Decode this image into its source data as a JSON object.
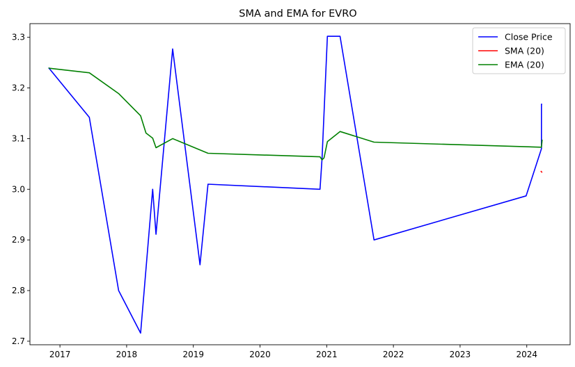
{
  "chart_data": {
    "type": "line",
    "title": "SMA and EMA for EVRO",
    "xlabel": "",
    "ylabel": "",
    "xlim": [
      2016.55,
      2024.65
    ],
    "ylim": [
      2.693,
      3.327
    ],
    "x_ticks": [
      2017,
      2018,
      2019,
      2020,
      2021,
      2022,
      2023,
      2024
    ],
    "y_ticks": [
      2.7,
      2.8,
      2.9,
      3.0,
      3.1,
      3.2,
      3.3
    ],
    "grid": false,
    "legend_position": "top-right",
    "series": [
      {
        "name": "Close Price",
        "color": "#0000ff",
        "points": [
          [
            2016.83,
            3.24
          ],
          [
            2017.44,
            3.142
          ],
          [
            2017.88,
            2.8
          ],
          [
            2018.21,
            2.716
          ],
          [
            2018.39,
            3.0
          ],
          [
            2018.44,
            2.911
          ],
          [
            2018.69,
            3.277
          ],
          [
            2019.1,
            2.851
          ],
          [
            2019.22,
            3.01
          ],
          [
            2020.9,
            3.0
          ],
          [
            2020.93,
            3.06
          ],
          [
            2021.01,
            3.302
          ],
          [
            2021.2,
            3.302
          ],
          [
            2021.71,
            2.9
          ],
          [
            2023.99,
            2.987
          ],
          [
            2024.22,
            3.08
          ],
          [
            2024.22,
            3.168
          ],
          [
            2024.23,
            3.168
          ]
        ]
      },
      {
        "name": "SMA (20)",
        "color": "#ff0000",
        "points": [
          [
            2024.21,
            3.036
          ],
          [
            2024.23,
            3.033
          ]
        ]
      },
      {
        "name": "EMA (20)",
        "color": "#008000",
        "points": [
          [
            2016.83,
            3.239
          ],
          [
            2017.44,
            3.23
          ],
          [
            2017.88,
            3.189
          ],
          [
            2018.21,
            3.145
          ],
          [
            2018.29,
            3.111
          ],
          [
            2018.39,
            3.101
          ],
          [
            2018.44,
            3.082
          ],
          [
            2018.69,
            3.1
          ],
          [
            2019.22,
            3.071
          ],
          [
            2020.9,
            3.064
          ],
          [
            2020.93,
            3.058
          ],
          [
            2020.96,
            3.062
          ],
          [
            2021.01,
            3.094
          ],
          [
            2021.2,
            3.114
          ],
          [
            2021.71,
            3.093
          ],
          [
            2024.22,
            3.083
          ],
          [
            2024.23,
            3.098
          ]
        ]
      }
    ]
  }
}
